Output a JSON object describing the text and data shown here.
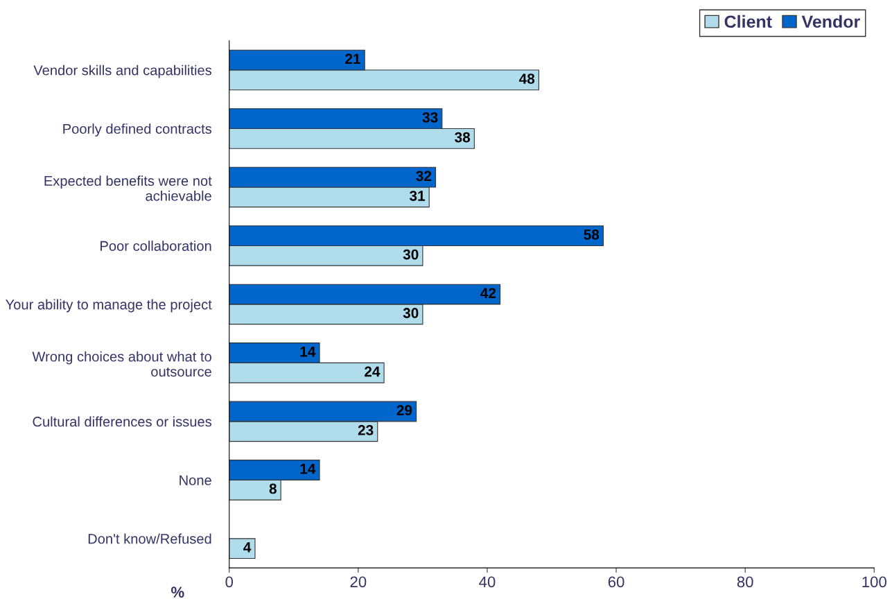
{
  "chart_data": {
    "type": "bar",
    "orientation": "horizontal",
    "xlabel": "%",
    "categories": [
      "Vendor skills and capabilities",
      "Poorly defined contracts",
      "Expected benefits were not achievable",
      "Poor collaboration",
      "Your ability to manage the project",
      "Wrong choices about what to outsource",
      "Cultural differences or issues",
      "None",
      "Don't know/Refused"
    ],
    "series": [
      {
        "name": "Client",
        "color": "#b0dcec",
        "values": [
          48,
          38,
          31,
          30,
          30,
          24,
          23,
          8,
          4
        ]
      },
      {
        "name": "Vendor",
        "color": "#0066cc",
        "values": [
          21,
          33,
          32,
          58,
          42,
          14,
          29,
          14,
          null
        ]
      }
    ],
    "xlim": [
      0,
      100
    ],
    "xticks": [
      0,
      20,
      40,
      60,
      80,
      100
    ],
    "data_labels": true,
    "legend": "top right",
    "grid": false
  }
}
